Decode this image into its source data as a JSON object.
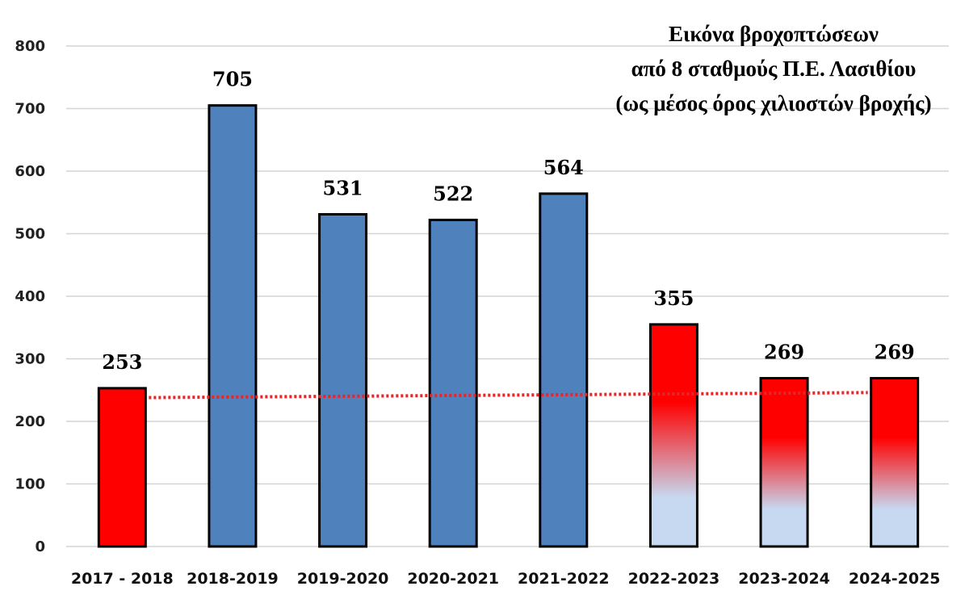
{
  "chart_data": {
    "type": "bar",
    "title_lines": [
      "Εικόνα βροχοπτώσεων",
      "από 8 σταθμούς Π.Ε. Λασιθίου",
      "(ως μέσος όρος χιλιοστών βροχής)"
    ],
    "categories": [
      "2017 - 2018",
      "2018-2019",
      "2019-2020",
      "2020-2021",
      "2021-2022",
      "2022-2023",
      "2023-2024",
      "2024-2025"
    ],
    "values": [
      253,
      705,
      531,
      522,
      564,
      355,
      269,
      269
    ],
    "bar_styles": [
      "red",
      "blue",
      "blue",
      "blue",
      "blue",
      "gradient",
      "gradient",
      "gradient"
    ],
    "data_labels": [
      "253",
      "705",
      "531",
      "522",
      "564",
      "355",
      "269",
      "269"
    ],
    "ylim": [
      0,
      800
    ],
    "yticks": [
      0,
      100,
      200,
      300,
      400,
      500,
      600,
      700,
      800
    ],
    "trend_line": {
      "style": "dotted",
      "start_value": 238,
      "end_value": 246
    },
    "grid": true,
    "colors": {
      "blue": "#4f81bd",
      "red": "#ff0000",
      "gradient_top": "#ff0000",
      "gradient_bottom": "#c6d9f1",
      "trend": "#e8262a",
      "grid": "#d4d4d4",
      "bar_border": "#000000"
    }
  }
}
